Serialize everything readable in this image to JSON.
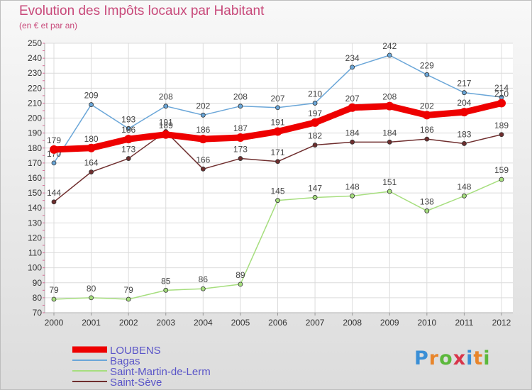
{
  "header": {
    "title": "Evolution des Impôts locaux par Habitant",
    "subtitle": "(en € et par an)"
  },
  "logo": {
    "text": "Proxiti",
    "letter_colors": [
      "#3a8fd6",
      "#e8852b",
      "#5cb83c",
      "#d8354a",
      "#3a8fd6",
      "#e8852b",
      "#5cb83c"
    ]
  },
  "chart_data": {
    "type": "line",
    "title": "Evolution des Impôts locaux par Habitant",
    "subtitle": "(en € et par an)",
    "xlabel": "",
    "ylabel": "",
    "x": [
      "2000",
      "2001",
      "2002",
      "2003",
      "2004",
      "2005",
      "2006",
      "2007",
      "2008",
      "2009",
      "2010",
      "2011",
      "2012"
    ],
    "ylim": [
      70,
      250
    ],
    "yticks": [
      70,
      80,
      90,
      100,
      110,
      120,
      130,
      140,
      150,
      160,
      170,
      180,
      190,
      200,
      210,
      220,
      230,
      240,
      250
    ],
    "grid": true,
    "legend_position": "bottom-left",
    "series": [
      {
        "name": "LOUBENS",
        "color": "#ee0000",
        "emphasis": true,
        "values": [
          179,
          180,
          186,
          189,
          186,
          187,
          191,
          197,
          207,
          208,
          202,
          204,
          210
        ]
      },
      {
        "name": "Bagas",
        "color": "#6aa6d8",
        "values": [
          170,
          209,
          193,
          208,
          202,
          208,
          207,
          210,
          234,
          242,
          229,
          217,
          214
        ]
      },
      {
        "name": "Saint-Martin-de-Lerm",
        "color": "#a6de7e",
        "values": [
          79,
          80,
          79,
          85,
          86,
          89,
          145,
          147,
          148,
          151,
          138,
          148,
          159
        ]
      },
      {
        "name": "Saint-Sève",
        "color": "#6f2e2e",
        "values": [
          144,
          164,
          173,
          191,
          166,
          173,
          171,
          182,
          184,
          184,
          186,
          183,
          189
        ]
      }
    ]
  }
}
